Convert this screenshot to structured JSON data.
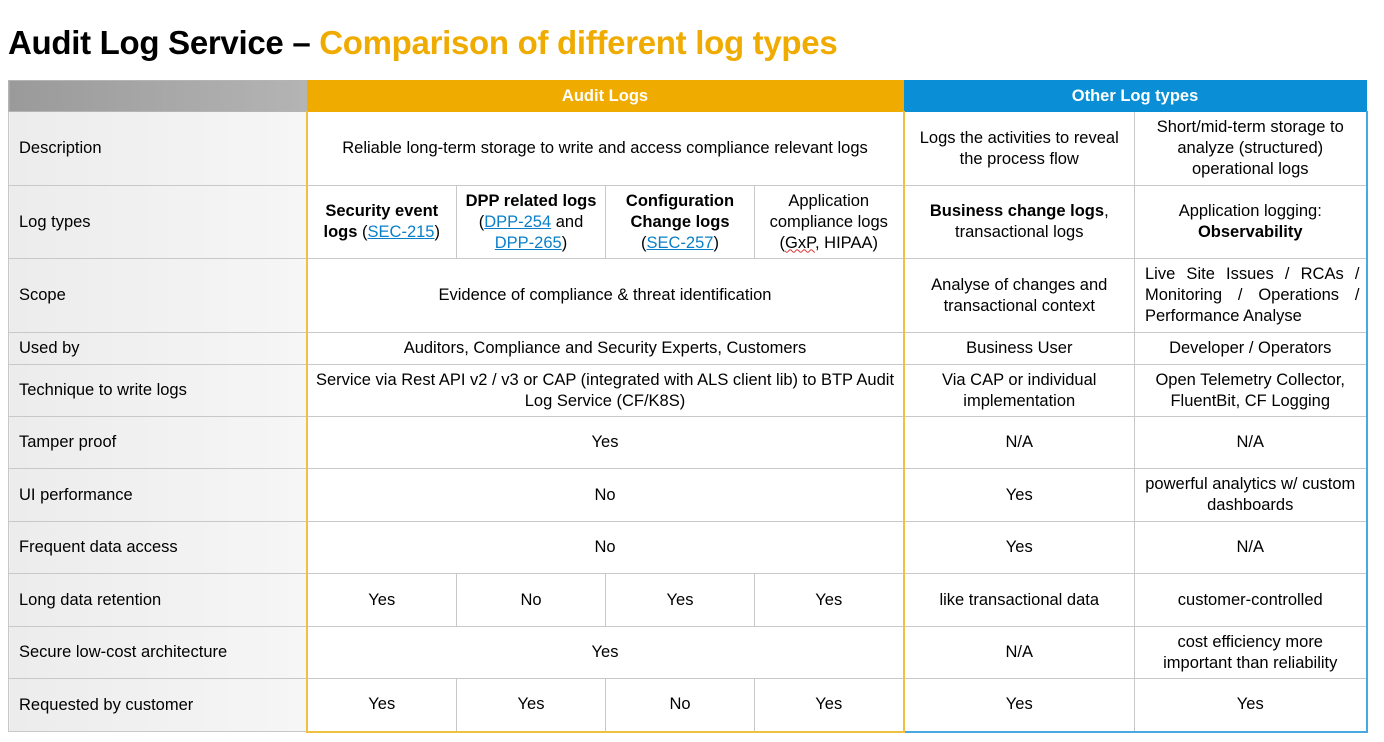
{
  "title": {
    "main": "Audit Log Service – ",
    "accent": "Comparison of different log types"
  },
  "colors": {
    "audit": "#f0ab00",
    "other": "#0a8fd6",
    "link": "#0a7fc8"
  },
  "headers": {
    "audit": "Audit Logs",
    "other": "Other Log types"
  },
  "rows": [
    {
      "label": "Description",
      "cells": [
        {
          "span": 4,
          "parts": [
            {
              "t": "Reliable long-term storage to write and access compliance relevant logs"
            }
          ]
        },
        {
          "parts": [
            {
              "t": "Logs the activities to reveal the process flow"
            }
          ]
        },
        {
          "parts": [
            {
              "t": "Short/mid-term storage to analyze  (structured) operational logs"
            }
          ]
        }
      ]
    },
    {
      "label": "Log types",
      "cells": [
        {
          "parts": [
            {
              "t": "Security event logs",
              "b": true
            },
            {
              "t": " ("
            },
            {
              "t": "SEC-215",
              "link": true
            },
            {
              "t": ")"
            }
          ]
        },
        {
          "parts": [
            {
              "t": "DPP related logs",
              "b": true
            },
            {
              "t": " ("
            },
            {
              "t": "DPP-254",
              "link": true
            },
            {
              "t": " and "
            },
            {
              "t": "DPP-265",
              "link": true
            },
            {
              "t": ")"
            }
          ]
        },
        {
          "parts": [
            {
              "t": "Configuration Change logs",
              "b": true
            },
            {
              "t": " ("
            },
            {
              "t": "SEC-257",
              "link": true
            },
            {
              "t": ")"
            }
          ]
        },
        {
          "parts": [
            {
              "t": "Application compliance logs ("
            },
            {
              "t": "GxP",
              "sq": true
            },
            {
              "t": ", HIPAA)"
            }
          ]
        },
        {
          "parts": [
            {
              "t": "Business change logs",
              "b": true
            },
            {
              "t": ", transactional logs"
            }
          ]
        },
        {
          "parts": [
            {
              "t": "Application logging: "
            },
            {
              "t": "Observability",
              "b": true
            }
          ]
        }
      ]
    },
    {
      "label": "Scope",
      "cells": [
        {
          "span": 4,
          "parts": [
            {
              "t": "Evidence of compliance & threat identification"
            }
          ]
        },
        {
          "parts": [
            {
              "t": "Analyse of changes and transactional context"
            }
          ]
        },
        {
          "parts": [
            {
              "t": "Live Site Issues / RCAs / Monitoring / Operations / Performance Analyse"
            }
          ],
          "left": true
        }
      ]
    },
    {
      "label": "Used by",
      "cells": [
        {
          "span": 4,
          "parts": [
            {
              "t": "Auditors, Compliance and Security Experts, Customers"
            }
          ]
        },
        {
          "parts": [
            {
              "t": "Business User"
            }
          ]
        },
        {
          "parts": [
            {
              "t": "Developer / Operators"
            }
          ]
        }
      ]
    },
    {
      "label": "Technique to write logs",
      "cells": [
        {
          "span": 4,
          "parts": [
            {
              "t": "Service via Rest API v2 / v3 or CAP (integrated with ALS client lib) to BTP Audit Log Service (CF/K8S)"
            }
          ]
        },
        {
          "parts": [
            {
              "t": "Via CAP or individual implementation"
            }
          ]
        },
        {
          "parts": [
            {
              "t": "Open Telemetry Collector, FluentBit, CF Logging"
            }
          ]
        }
      ]
    },
    {
      "label": "Tamper proof",
      "cells": [
        {
          "span": 4,
          "parts": [
            {
              "t": "Yes"
            }
          ]
        },
        {
          "parts": [
            {
              "t": "N/A"
            }
          ]
        },
        {
          "parts": [
            {
              "t": "N/A"
            }
          ]
        }
      ]
    },
    {
      "label": "UI performance",
      "cells": [
        {
          "span": 4,
          "parts": [
            {
              "t": "No"
            }
          ]
        },
        {
          "parts": [
            {
              "t": "Yes"
            }
          ]
        },
        {
          "parts": [
            {
              "t": "powerful analytics w/ custom dashboards"
            }
          ]
        }
      ]
    },
    {
      "label": "Frequent data access",
      "cells": [
        {
          "span": 4,
          "parts": [
            {
              "t": "No"
            }
          ]
        },
        {
          "parts": [
            {
              "t": "Yes"
            }
          ]
        },
        {
          "parts": [
            {
              "t": "N/A"
            }
          ]
        }
      ]
    },
    {
      "label": "Long data retention",
      "cells": [
        {
          "parts": [
            {
              "t": "Yes"
            }
          ]
        },
        {
          "parts": [
            {
              "t": "No"
            }
          ]
        },
        {
          "parts": [
            {
              "t": "Yes"
            }
          ]
        },
        {
          "parts": [
            {
              "t": "Yes"
            }
          ]
        },
        {
          "parts": [
            {
              "t": "like transactional data"
            }
          ]
        },
        {
          "parts": [
            {
              "t": "customer-controlled"
            }
          ]
        }
      ]
    },
    {
      "label": "Secure low-cost architecture",
      "cells": [
        {
          "span": 4,
          "parts": [
            {
              "t": "Yes"
            }
          ]
        },
        {
          "parts": [
            {
              "t": "N/A"
            }
          ]
        },
        {
          "parts": [
            {
              "t": "cost efficiency more important than reliability"
            }
          ]
        }
      ]
    },
    {
      "label": "Requested by customer",
      "cells": [
        {
          "parts": [
            {
              "t": "Yes"
            }
          ]
        },
        {
          "parts": [
            {
              "t": "Yes"
            }
          ]
        },
        {
          "parts": [
            {
              "t": "No"
            }
          ]
        },
        {
          "parts": [
            {
              "t": "Yes"
            }
          ]
        },
        {
          "parts": [
            {
              "t": "Yes"
            }
          ]
        },
        {
          "parts": [
            {
              "t": "Yes"
            }
          ]
        }
      ]
    }
  ]
}
